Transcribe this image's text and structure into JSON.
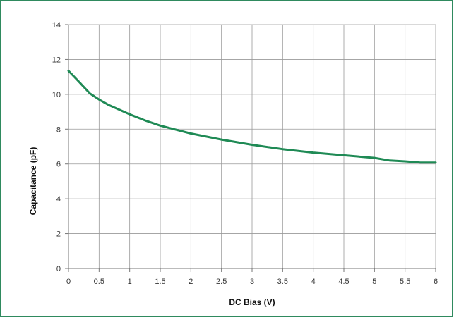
{
  "chart_data": {
    "type": "line",
    "title": "",
    "xlabel": "DC Bias (V)",
    "ylabel": "Capacitance (pF)",
    "xlim": [
      0,
      6
    ],
    "ylim": [
      0,
      14
    ],
    "x_ticks": [
      "0",
      "0.5",
      "1",
      "1.5",
      "2",
      "2.5",
      "3",
      "3.5",
      "4",
      "4.5",
      "5",
      "5.5",
      "6"
    ],
    "y_ticks": [
      "0",
      "2",
      "4",
      "6",
      "8",
      "10",
      "12",
      "14"
    ],
    "grid": true,
    "legend": "none",
    "series": [
      {
        "color": "#1f8a55",
        "x": [
          0,
          0.15,
          0.35,
          0.5,
          0.65,
          1.0,
          1.25,
          1.5,
          2.0,
          2.5,
          3.0,
          3.5,
          4.0,
          4.5,
          5.0,
          5.25,
          5.5,
          5.75,
          6.0
        ],
        "y": [
          11.35,
          10.8,
          10.05,
          9.7,
          9.4,
          8.85,
          8.5,
          8.2,
          7.75,
          7.4,
          7.1,
          6.85,
          6.65,
          6.5,
          6.35,
          6.2,
          6.15,
          6.08,
          6.08
        ]
      }
    ]
  }
}
